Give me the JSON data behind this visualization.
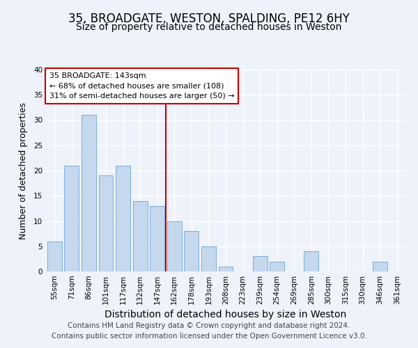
{
  "title": "35, BROADGATE, WESTON, SPALDING, PE12 6HY",
  "subtitle": "Size of property relative to detached houses in Weston",
  "xlabel": "Distribution of detached houses by size in Weston",
  "ylabel": "Number of detached properties",
  "bar_labels": [
    "55sqm",
    "71sqm",
    "86sqm",
    "101sqm",
    "117sqm",
    "132sqm",
    "147sqm",
    "162sqm",
    "178sqm",
    "193sqm",
    "208sqm",
    "223sqm",
    "239sqm",
    "254sqm",
    "269sqm",
    "285sqm",
    "300sqm",
    "315sqm",
    "330sqm",
    "346sqm",
    "361sqm"
  ],
  "bar_values": [
    6,
    21,
    31,
    19,
    21,
    14,
    13,
    10,
    8,
    5,
    1,
    0,
    3,
    2,
    0,
    4,
    0,
    0,
    0,
    2,
    0
  ],
  "bar_color": "#c5d8ed",
  "bar_edge_color": "#7aaed6",
  "ylim": [
    0,
    40
  ],
  "yticks": [
    0,
    5,
    10,
    15,
    20,
    25,
    30,
    35,
    40
  ],
  "vline_x_index": 6,
  "vline_color": "#cc0000",
  "annotation_title": "35 BROADGATE: 143sqm",
  "annotation_line1": "← 68% of detached houses are smaller (108)",
  "annotation_line2": "31% of semi-detached houses are larger (50) →",
  "footer1": "Contains HM Land Registry data © Crown copyright and database right 2024.",
  "footer2": "Contains public sector information licensed under the Open Government Licence v3.0.",
  "bg_color": "#eef2fa",
  "plot_bg_color": "#eef2fa",
  "grid_color": "#ffffff",
  "title_fontsize": 12,
  "subtitle_fontsize": 10,
  "xlabel_fontsize": 10,
  "ylabel_fontsize": 9,
  "tick_fontsize": 7.5,
  "footer_fontsize": 7.5
}
